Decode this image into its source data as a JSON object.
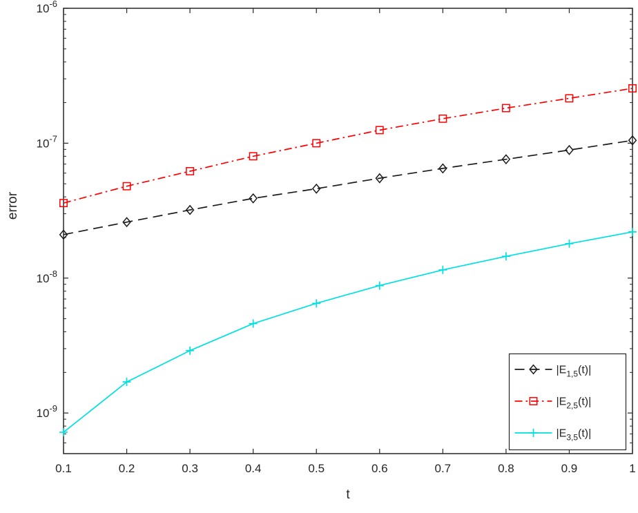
{
  "figure": {
    "background": "#ffffff",
    "axis_color": "#262626"
  },
  "chart_data": {
    "type": "line",
    "title": "",
    "xlabel": "t",
    "ylabel": "error",
    "xlim": [
      0.1,
      1
    ],
    "ylim": [
      5e-10,
      1e-06
    ],
    "yscale": "log",
    "grid": false,
    "x_ticks": [
      0.1,
      0.2,
      0.3,
      0.4,
      0.5,
      0.6,
      0.7,
      0.8,
      0.9,
      1
    ],
    "x_tick_labels": [
      "0.1",
      "0.2",
      "0.3",
      "0.4",
      "0.5",
      "0.6",
      "0.7",
      "0.8",
      "0.9",
      "1"
    ],
    "y_tick_exponents": [
      -9,
      -8,
      -7,
      -6
    ],
    "x": [
      0.1,
      0.2,
      0.3,
      0.4,
      0.5,
      0.6,
      0.7,
      0.8,
      0.9,
      1
    ],
    "legend": {
      "position": "southeast-inside"
    },
    "series": [
      {
        "name": "|E_1,5(t)|",
        "label_base": "|E",
        "label_sub": "1,5",
        "label_rest": "(t)|",
        "color": "#1a1a1a",
        "linestyle": "dashed",
        "marker": "diamond",
        "values": [
          2.1e-08,
          2.6e-08,
          3.2e-08,
          3.9e-08,
          4.6e-08,
          5.5e-08,
          6.5e-08,
          7.6e-08,
          8.9e-08,
          1.05e-07
        ]
      },
      {
        "name": "|E_2,5(t)|",
        "label_base": "|E",
        "label_sub": "2,5",
        "label_rest": "(t)|",
        "color": "#ff0000",
        "linestyle": "dashdot",
        "marker": "square",
        "values": [
          3.6e-08,
          4.8e-08,
          6.2e-08,
          8e-08,
          1e-07,
          1.25e-07,
          1.52e-07,
          1.82e-07,
          2.15e-07,
          2.55e-07
        ]
      },
      {
        "name": "|E_3,5(t)|",
        "label_base": "|E",
        "label_sub": "3,5",
        "label_rest": "(t)|",
        "color": "#00e0e0",
        "linestyle": "solid",
        "marker": "plus",
        "values": [
          7.2e-10,
          1.7e-09,
          2.9e-09,
          4.6e-09,
          6.5e-09,
          8.8e-09,
          1.15e-08,
          1.45e-08,
          1.8e-08,
          2.2e-08
        ]
      }
    ]
  }
}
